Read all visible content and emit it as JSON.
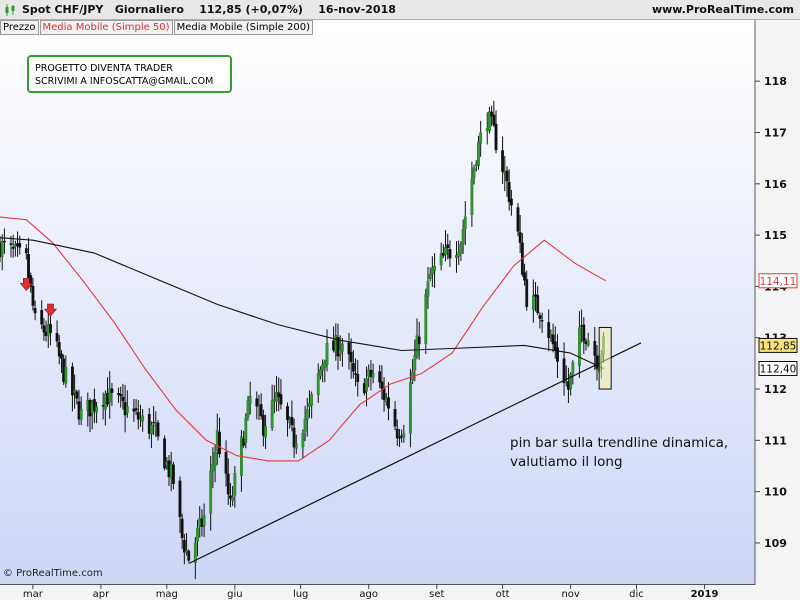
{
  "header": {
    "instrument": "Spot CHF/JPY",
    "timeframe": "Giornaliero",
    "price_change": "112,85 (+0,07%)",
    "date": "16-nov-2018",
    "site": "www.ProRealTime.com"
  },
  "legend": {
    "price": "Prezzo",
    "ma50": "Media Mobile (Simple 50)",
    "ma200": "Media Mobile (Simple 200)"
  },
  "note_box": {
    "line1": "PROGETTO DIVENTA TRADER",
    "line2": "SCRIVIMI A INFOSCATTA@GMAIL.COM"
  },
  "annotation": {
    "line1": "pin bar sulla trendline dinamica,",
    "line2": "valutiamo il long"
  },
  "copyright": "© ProRealTime.com",
  "colors": {
    "candle_up": "#2e9a2e",
    "candle_down": "#111111",
    "ma50": "#e23b3b",
    "ma200": "#111111",
    "bg_top": "#ffffff",
    "bg_bottom": "#cdd6f6",
    "note_border": "#34a030",
    "highlight": "#f5eeaa",
    "arrow": "#e03030"
  },
  "chart_data": {
    "type": "candlestick",
    "title": "Spot CHF/JPY Giornaliero",
    "xlabel": "",
    "ylabel": "",
    "y_ticks": [
      109,
      110,
      111,
      112,
      113,
      114,
      115,
      116,
      117,
      118
    ],
    "ylim": [
      108.2,
      118.9
    ],
    "x_ticks": [
      {
        "label": "mar",
        "date": "2018-03-01"
      },
      {
        "label": "apr",
        "date": "2018-04-01"
      },
      {
        "label": "mag",
        "date": "2018-05-01"
      },
      {
        "label": "giu",
        "date": "2018-06-01"
      },
      {
        "label": "lug",
        "date": "2018-07-01"
      },
      {
        "label": "ago",
        "date": "2018-08-01"
      },
      {
        "label": "set",
        "date": "2018-09-01"
      },
      {
        "label": "ott",
        "date": "2018-10-01"
      },
      {
        "label": "nov",
        "date": "2018-11-01"
      },
      {
        "label": "dic",
        "date": "2018-12-01"
      },
      {
        "label": "2019",
        "date": "2019-01-01"
      }
    ],
    "xlim": [
      "2018-02-14",
      "2019-01-24"
    ],
    "price_path": [
      {
        "date": "2018-02-14",
        "close": 114.8
      },
      {
        "date": "2018-02-26",
        "close": 114.5
      },
      {
        "date": "2018-03-02",
        "close": 113.3
      },
      {
        "date": "2018-03-10",
        "close": 113.0
      },
      {
        "date": "2018-03-16",
        "close": 112.2
      },
      {
        "date": "2018-03-23",
        "close": 111.5
      },
      {
        "date": "2018-04-03",
        "close": 111.9
      },
      {
        "date": "2018-04-13",
        "close": 111.6
      },
      {
        "date": "2018-04-25",
        "close": 111.2
      },
      {
        "date": "2018-05-04",
        "close": 110.2
      },
      {
        "date": "2018-05-08",
        "close": 109.1
      },
      {
        "date": "2018-05-11",
        "close": 108.7
      },
      {
        "date": "2018-05-18",
        "close": 109.5
      },
      {
        "date": "2018-05-24",
        "close": 111.1
      },
      {
        "date": "2018-05-30",
        "close": 109.7
      },
      {
        "date": "2018-06-04",
        "close": 110.9
      },
      {
        "date": "2018-06-08",
        "close": 111.8
      },
      {
        "date": "2018-06-14",
        "close": 111.3
      },
      {
        "date": "2018-06-20",
        "close": 111.8
      },
      {
        "date": "2018-06-28",
        "close": 111.0
      },
      {
        "date": "2018-07-05",
        "close": 111.6
      },
      {
        "date": "2018-07-12",
        "close": 112.7
      },
      {
        "date": "2018-07-20",
        "close": 112.9
      },
      {
        "date": "2018-07-27",
        "close": 112.0
      },
      {
        "date": "2018-08-03",
        "close": 112.3
      },
      {
        "date": "2018-08-10",
        "close": 111.7
      },
      {
        "date": "2018-08-14",
        "close": 111.2
      },
      {
        "date": "2018-08-17",
        "close": 111.3
      },
      {
        "date": "2018-08-22",
        "close": 112.6
      },
      {
        "date": "2018-08-29",
        "close": 114.2
      },
      {
        "date": "2018-09-05",
        "close": 114.6
      },
      {
        "date": "2018-09-12",
        "close": 114.9
      },
      {
        "date": "2018-09-19",
        "close": 116.6
      },
      {
        "date": "2018-09-24",
        "close": 117.3
      },
      {
        "date": "2018-09-27",
        "close": 117.0
      },
      {
        "date": "2018-10-03",
        "close": 116.0
      },
      {
        "date": "2018-10-08",
        "close": 115.0
      },
      {
        "date": "2018-10-12",
        "close": 113.8
      },
      {
        "date": "2018-10-19",
        "close": 113.5
      },
      {
        "date": "2018-10-26",
        "close": 112.6
      },
      {
        "date": "2018-10-31",
        "close": 112.0
      },
      {
        "date": "2018-11-06",
        "close": 113.2
      },
      {
        "date": "2018-11-09",
        "close": 113.0
      },
      {
        "date": "2018-11-13",
        "close": 112.6
      },
      {
        "date": "2018-11-16",
        "close": 112.85
      }
    ],
    "series": [
      {
        "name": "Media Mobile (Simple 50)",
        "color": "#e23b3b",
        "points": [
          {
            "date": "2018-02-14",
            "y": 115.35
          },
          {
            "date": "2018-02-26",
            "y": 115.3
          },
          {
            "date": "2018-03-10",
            "y": 114.85
          },
          {
            "date": "2018-03-24",
            "y": 114.1
          },
          {
            "date": "2018-04-07",
            "y": 113.3
          },
          {
            "date": "2018-04-21",
            "y": 112.4
          },
          {
            "date": "2018-05-05",
            "y": 111.6
          },
          {
            "date": "2018-05-19",
            "y": 111.0
          },
          {
            "date": "2018-06-02",
            "y": 110.7
          },
          {
            "date": "2018-06-16",
            "y": 110.6
          },
          {
            "date": "2018-06-30",
            "y": 110.6
          },
          {
            "date": "2018-07-14",
            "y": 111.0
          },
          {
            "date": "2018-07-28",
            "y": 111.7
          },
          {
            "date": "2018-08-11",
            "y": 112.1
          },
          {
            "date": "2018-08-25",
            "y": 112.3
          },
          {
            "date": "2018-09-08",
            "y": 112.7
          },
          {
            "date": "2018-09-22",
            "y": 113.6
          },
          {
            "date": "2018-10-06",
            "y": 114.4
          },
          {
            "date": "2018-10-20",
            "y": 114.9
          },
          {
            "date": "2018-11-03",
            "y": 114.45
          },
          {
            "date": "2018-11-17",
            "y": 114.11
          }
        ]
      },
      {
        "name": "Media Mobile (Simple 200)",
        "color": "#111111",
        "points": [
          {
            "date": "2018-02-14",
            "y": 114.95
          },
          {
            "date": "2018-03-01",
            "y": 114.9
          },
          {
            "date": "2018-03-29",
            "y": 114.65
          },
          {
            "date": "2018-04-26",
            "y": 114.15
          },
          {
            "date": "2018-05-24",
            "y": 113.65
          },
          {
            "date": "2018-06-21",
            "y": 113.25
          },
          {
            "date": "2018-07-19",
            "y": 112.95
          },
          {
            "date": "2018-08-16",
            "y": 112.75
          },
          {
            "date": "2018-09-13",
            "y": 112.8
          },
          {
            "date": "2018-10-11",
            "y": 112.85
          },
          {
            "date": "2018-11-01",
            "y": 112.7
          },
          {
            "date": "2018-11-16",
            "y": 112.4
          }
        ]
      },
      {
        "name": "trendline",
        "color": "#111111",
        "points": [
          {
            "date": "2018-05-11",
            "y": 108.6
          },
          {
            "date": "2018-12-03",
            "y": 112.9
          }
        ]
      }
    ],
    "price_labels": [
      {
        "value": 114.11,
        "text": "114,11",
        "color": "#e23b3b"
      },
      {
        "value": 112.85,
        "text": "112,85",
        "color": "#111111",
        "bg": "#f5e27a"
      },
      {
        "value": 112.4,
        "text": "112,40",
        "color": "#111111"
      }
    ],
    "markers": [
      {
        "type": "arrow-down",
        "date": "2018-02-26",
        "y": 114.0
      },
      {
        "type": "arrow-down",
        "date": "2018-03-09",
        "y": 113.5
      }
    ],
    "highlight": {
      "date_from": "2018-11-14",
      "date_to": "2018-11-18",
      "y_from": 112.0,
      "y_to": 113.2
    },
    "grid": false,
    "legend_position": "top-left"
  }
}
